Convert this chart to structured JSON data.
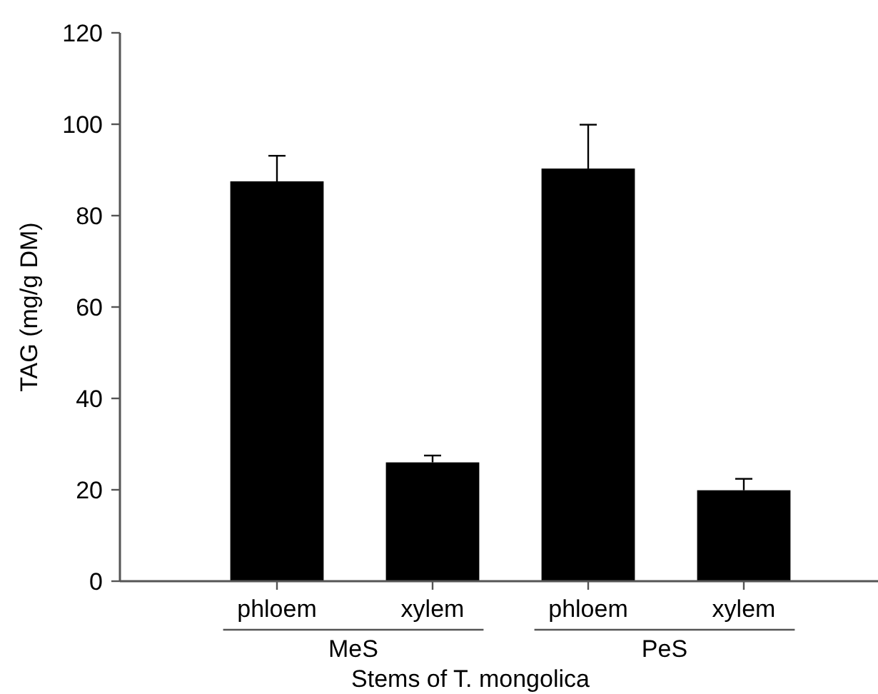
{
  "chart_data": {
    "type": "bar",
    "xlabel": "Stems of T. mongolica",
    "ylabel": "TAG (mg/g DM)",
    "categories": [
      "phloem",
      "xylem",
      "phloem",
      "xylem"
    ],
    "values": [
      87.5,
      26,
      90.3,
      19.9
    ],
    "color": "#000000",
    "errors": [
      [
        87.5,
        93.1
      ],
      [
        26,
        27.5
      ],
      [
        90.3,
        99.9
      ],
      [
        19.9,
        22.4
      ]
    ],
    "ylim": [
      0,
      120
    ],
    "yticks": [
      0,
      20,
      40,
      60,
      80,
      100,
      120
    ],
    "annotations": [
      "MeS",
      "PeS"
    ]
  }
}
